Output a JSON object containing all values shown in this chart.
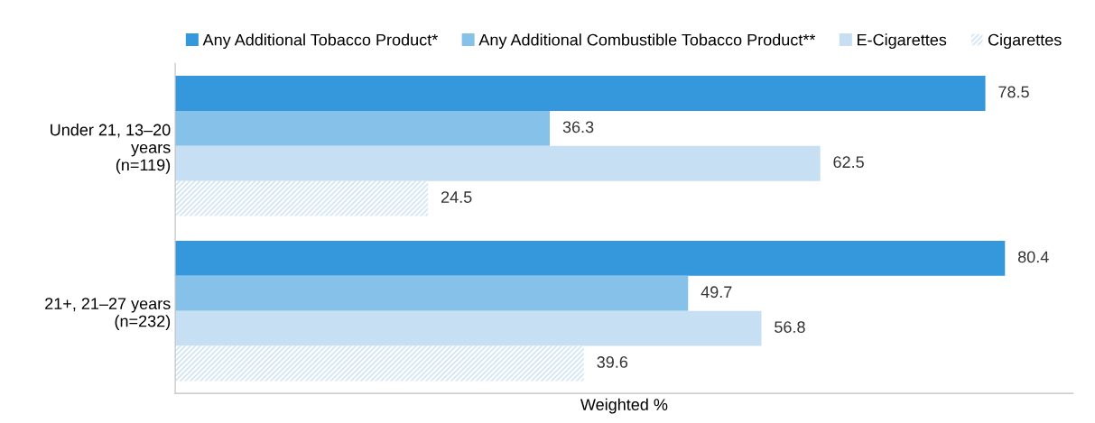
{
  "chart_data": {
    "type": "bar",
    "orientation": "horizontal",
    "xlabel": "Weighted %",
    "categories": [
      "Under 21, 13–20\nyears\n(n=119)",
      "21+, 21–27 years\n(n=232)"
    ],
    "series": [
      {
        "name": "Any Additional Tobacco Product*",
        "color": "#3598dc",
        "values": [
          78.5,
          80.4
        ]
      },
      {
        "name": "Any Additional Combustible Tobacco Product**",
        "color": "#85c1e9",
        "values": [
          36.3,
          49.7
        ]
      },
      {
        "name": "E-Cigarettes",
        "color": "#c6dff2",
        "values": [
          62.5,
          56.8
        ]
      },
      {
        "name": "Cigarettes",
        "color": "#c6dff2",
        "values": [
          24.5,
          39.6
        ]
      }
    ],
    "xlim": [
      0,
      87
    ],
    "data_labels": true,
    "legend": "top",
    "grid": false
  }
}
